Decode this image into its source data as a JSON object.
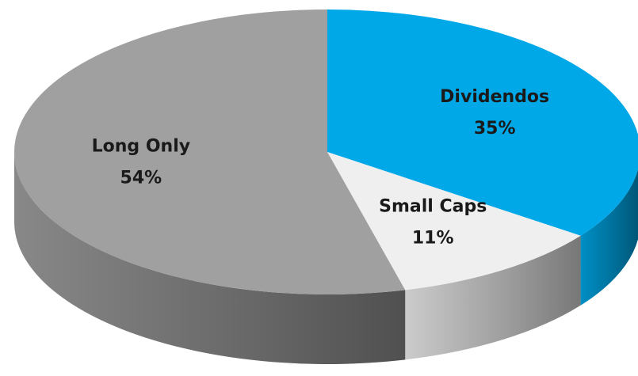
{
  "chart_data": {
    "type": "pie",
    "categories": [
      "Dividendos",
      "Small Caps",
      "Long Only"
    ],
    "values": [
      35,
      11,
      54
    ],
    "value_labels": [
      "35%",
      "11%",
      "54%"
    ],
    "colors": [
      "#00a8e8",
      "#efefef",
      "#a0a0a0"
    ]
  }
}
